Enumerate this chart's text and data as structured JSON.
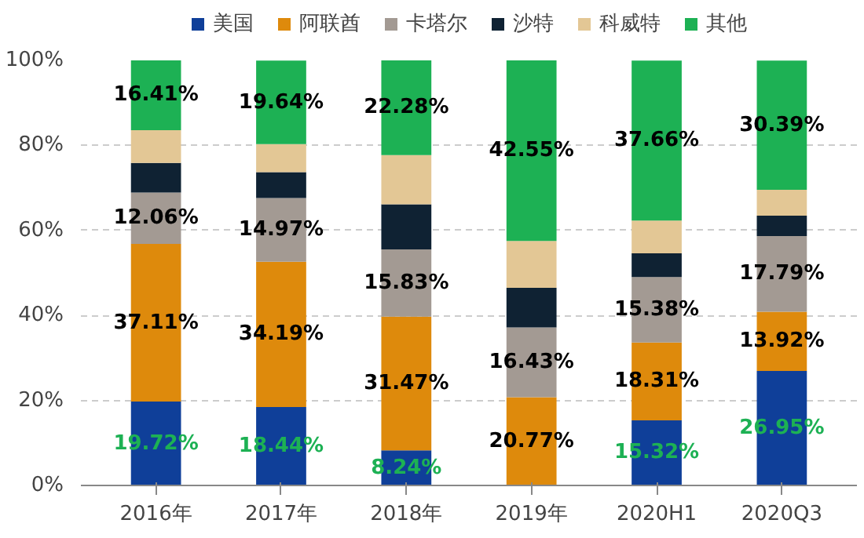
{
  "chart_data": {
    "type": "bar",
    "stacked": true,
    "categories": [
      "2016年",
      "2017年",
      "2018年",
      "2019年",
      "2020H1",
      "2020Q3"
    ],
    "series": [
      {
        "name": "美国",
        "color": "#0f3f99",
        "values": [
          19.72,
          18.44,
          8.24,
          0,
          15.32,
          26.95
        ],
        "value_labels": [
          "19.72%",
          "18.44%",
          "8.24%",
          null,
          "15.32%",
          "26.95%"
        ]
      },
      {
        "name": "阿联酋",
        "color": "#de8a0c",
        "values": [
          37.11,
          34.19,
          31.47,
          20.77,
          18.31,
          13.92
        ],
        "value_labels": [
          "37.11%",
          "34.19%",
          "31.47%",
          "20.77%",
          "18.31%",
          "13.92%"
        ]
      },
      {
        "name": "卡塔尔",
        "color": "#a39a93",
        "values": [
          12.06,
          14.97,
          15.83,
          16.43,
          15.38,
          17.79
        ],
        "value_labels": [
          "12.06%",
          "14.97%",
          "15.83%",
          "16.43%",
          "15.38%",
          "17.79%"
        ]
      },
      {
        "name": "沙特",
        "color": "#0f2233",
        "values": [
          7.0,
          6.1,
          10.6,
          9.3,
          5.6,
          4.8
        ]
      },
      {
        "name": "科威特",
        "color": "#e3c795",
        "values": [
          7.7,
          6.6,
          11.6,
          11.0,
          7.7,
          6.1
        ]
      },
      {
        "name": "其他",
        "color": "#1db154",
        "values": [
          16.41,
          19.64,
          22.28,
          42.55,
          37.66,
          30.39
        ],
        "value_labels": [
          "16.41%",
          "19.64%",
          "22.28%",
          "42.55%",
          "37.66%",
          "30.39%"
        ]
      }
    ],
    "ylim": [
      0,
      100
    ],
    "yticks": [
      {
        "value": 0,
        "label": "0%"
      },
      {
        "value": 20,
        "label": "20%"
      },
      {
        "value": 40,
        "label": "40%"
      },
      {
        "value": 60,
        "label": "60%"
      },
      {
        "value": 80,
        "label": "80%"
      },
      {
        "value": 100,
        "label": "100%"
      }
    ],
    "grid": "y",
    "legend": "top"
  }
}
